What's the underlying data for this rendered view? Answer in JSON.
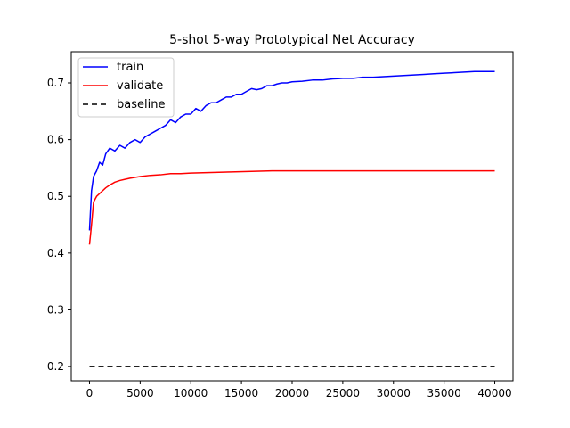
{
  "chart_data": {
    "type": "line",
    "title": "5-shot 5-way Prototypical Net Accuracy",
    "xlabel": "",
    "ylabel": "",
    "xlim": [
      -1800,
      41800
    ],
    "ylim": [
      0.175,
      0.755
    ],
    "x_ticks": [
      0,
      5000,
      10000,
      15000,
      20000,
      25000,
      30000,
      35000,
      40000
    ],
    "x_tick_labels": [
      "0",
      "5000",
      "10000",
      "15000",
      "20000",
      "25000",
      "30000",
      "35000",
      "40000"
    ],
    "y_ticks": [
      0.2,
      0.3,
      0.4,
      0.5,
      0.6,
      0.7
    ],
    "y_tick_labels": [
      "0.2",
      "0.3",
      "0.4",
      "0.5",
      "0.6",
      "0.7"
    ],
    "grid": false,
    "legend_position": "top-left",
    "series": [
      {
        "name": "train",
        "color": "#0000ff",
        "style": "solid",
        "points": [
          [
            0,
            0.44
          ],
          [
            200,
            0.51
          ],
          [
            400,
            0.535
          ],
          [
            700,
            0.545
          ],
          [
            1000,
            0.56
          ],
          [
            1300,
            0.555
          ],
          [
            1600,
            0.575
          ],
          [
            2000,
            0.585
          ],
          [
            2500,
            0.58
          ],
          [
            3000,
            0.59
          ],
          [
            3500,
            0.585
          ],
          [
            4000,
            0.595
          ],
          [
            4500,
            0.6
          ],
          [
            5000,
            0.595
          ],
          [
            5500,
            0.605
          ],
          [
            6000,
            0.61
          ],
          [
            6500,
            0.615
          ],
          [
            7000,
            0.62
          ],
          [
            7500,
            0.625
          ],
          [
            8000,
            0.635
          ],
          [
            8500,
            0.63
          ],
          [
            9000,
            0.64
          ],
          [
            9500,
            0.645
          ],
          [
            10000,
            0.645
          ],
          [
            10500,
            0.655
          ],
          [
            11000,
            0.65
          ],
          [
            11500,
            0.66
          ],
          [
            12000,
            0.665
          ],
          [
            12500,
            0.665
          ],
          [
            13000,
            0.67
          ],
          [
            13500,
            0.675
          ],
          [
            14000,
            0.675
          ],
          [
            14500,
            0.68
          ],
          [
            15000,
            0.68
          ],
          [
            15500,
            0.685
          ],
          [
            16000,
            0.69
          ],
          [
            16500,
            0.688
          ],
          [
            17000,
            0.69
          ],
          [
            17500,
            0.695
          ],
          [
            18000,
            0.695
          ],
          [
            18500,
            0.698
          ],
          [
            19000,
            0.7
          ],
          [
            19500,
            0.7
          ],
          [
            20000,
            0.702
          ],
          [
            21000,
            0.703
          ],
          [
            22000,
            0.705
          ],
          [
            23000,
            0.705
          ],
          [
            24000,
            0.707
          ],
          [
            25000,
            0.708
          ],
          [
            26000,
            0.708
          ],
          [
            27000,
            0.71
          ],
          [
            28000,
            0.71
          ],
          [
            29000,
            0.711
          ],
          [
            30000,
            0.712
          ],
          [
            31000,
            0.713
          ],
          [
            32000,
            0.714
          ],
          [
            33000,
            0.715
          ],
          [
            34000,
            0.716
          ],
          [
            35000,
            0.717
          ],
          [
            36000,
            0.718
          ],
          [
            37000,
            0.719
          ],
          [
            38000,
            0.72
          ],
          [
            39000,
            0.72
          ],
          [
            40000,
            0.72
          ]
        ]
      },
      {
        "name": "validate",
        "color": "#ff0000",
        "style": "solid",
        "points": [
          [
            0,
            0.415
          ],
          [
            200,
            0.45
          ],
          [
            400,
            0.49
          ],
          [
            700,
            0.5
          ],
          [
            1000,
            0.505
          ],
          [
            1300,
            0.51
          ],
          [
            1600,
            0.515
          ],
          [
            2000,
            0.52
          ],
          [
            2500,
            0.525
          ],
          [
            3000,
            0.528
          ],
          [
            3500,
            0.53
          ],
          [
            4000,
            0.532
          ],
          [
            5000,
            0.535
          ],
          [
            6000,
            0.537
          ],
          [
            7000,
            0.538
          ],
          [
            8000,
            0.54
          ],
          [
            9000,
            0.54
          ],
          [
            10000,
            0.541
          ],
          [
            12000,
            0.542
          ],
          [
            14000,
            0.543
          ],
          [
            16000,
            0.544
          ],
          [
            18000,
            0.545
          ],
          [
            20000,
            0.545
          ],
          [
            22000,
            0.545
          ],
          [
            24000,
            0.545
          ],
          [
            26000,
            0.545
          ],
          [
            28000,
            0.545
          ],
          [
            30000,
            0.545
          ],
          [
            32000,
            0.545
          ],
          [
            34000,
            0.545
          ],
          [
            36000,
            0.545
          ],
          [
            38000,
            0.545
          ],
          [
            40000,
            0.545
          ]
        ]
      },
      {
        "name": "baseline",
        "color": "#000000",
        "style": "dashed",
        "points": [
          [
            0,
            0.2
          ],
          [
            40000,
            0.2
          ]
        ]
      }
    ]
  }
}
